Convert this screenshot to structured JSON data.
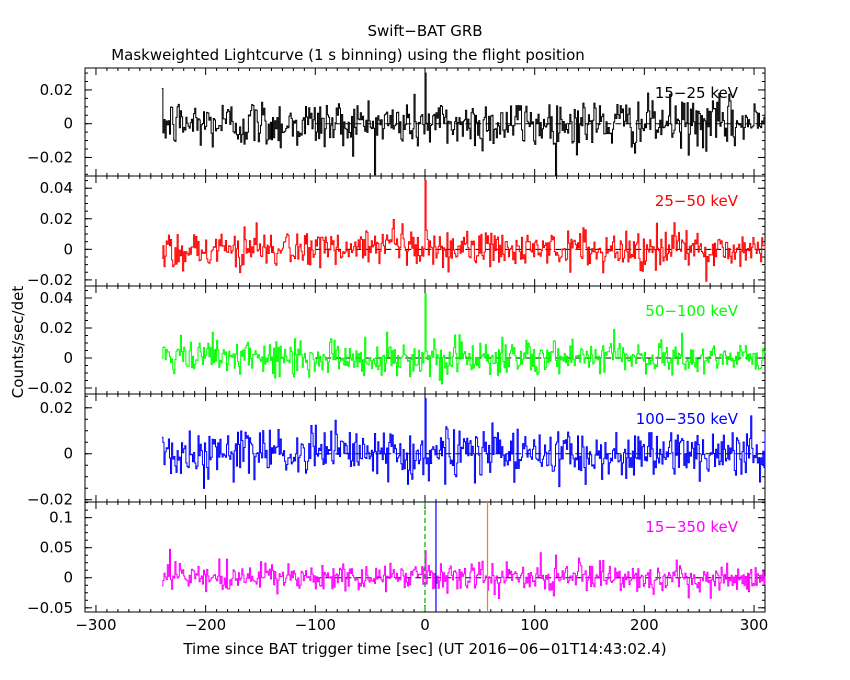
{
  "title": "Swift−BAT GRB",
  "subtitle": "Maskweighted Lightcurve (1 s binning) using the flight position",
  "xlabel": "Time since BAT trigger time [sec] (UT 2016−06−01T14:43:02.4)",
  "ylabel": "Counts/sec/det",
  "colors": {
    "band_15_25": "#000000",
    "band_25_50": "#ff0000",
    "band_50_100": "#00ff00",
    "band_100_350": "#0000ff",
    "band_15_350": "#ff00ff",
    "trigger_marker": "#00aa00",
    "t90_start_marker": "#0000ff",
    "t90_end_marker": "#ff8000"
  },
  "chart_data": {
    "type": "line",
    "xlim": [
      -310,
      310
    ],
    "xticks": [
      -300,
      -200,
      -100,
      0,
      100,
      200,
      300
    ],
    "xtick_labels": [
      "−300",
      "−200",
      "−100",
      "0",
      "100",
      "200",
      "300"
    ],
    "data_range": [
      -240,
      310
    ],
    "binning_s": 1,
    "zero_line": "dashed",
    "panels": [
      {
        "label": "15−25 keV",
        "color_key": "band_15_25",
        "ylim": [
          -0.031,
          0.033
        ],
        "yticks": [
          -0.02,
          0,
          0.02
        ],
        "ytick_labels": [
          "−0.02",
          "0",
          "0.02"
        ],
        "noise_sigma": 0.0075,
        "peak": {
          "t": 0,
          "value": 0.03
        }
      },
      {
        "label": "25−50 keV",
        "color_key": "band_25_50",
        "ylim": [
          -0.024,
          0.048
        ],
        "yticks": [
          -0.02,
          0,
          0.02,
          0.04
        ],
        "ytick_labels": [
          "−0.02",
          "0",
          "0.02",
          "0.04"
        ],
        "noise_sigma": 0.0065,
        "peak": {
          "t": 0,
          "value": 0.045
        }
      },
      {
        "label": "50−100 keV",
        "color_key": "band_50_100",
        "ylim": [
          -0.024,
          0.048
        ],
        "yticks": [
          -0.02,
          0,
          0.02,
          0.04
        ],
        "ytick_labels": [
          "−0.02",
          "0",
          "0.02",
          "0.04"
        ],
        "noise_sigma": 0.006,
        "peak": {
          "t": 0,
          "value": 0.043
        }
      },
      {
        "label": "100−350 keV",
        "color_key": "band_100_350",
        "ylim": [
          -0.021,
          0.026
        ],
        "yticks": [
          -0.02,
          0,
          0.02
        ],
        "ytick_labels": [
          "−0.02",
          "0",
          "0.02"
        ],
        "noise_sigma": 0.0055,
        "peak": {
          "t": 0,
          "value": 0.024
        }
      },
      {
        "label": "15−350 keV",
        "color_key": "band_15_350",
        "ylim": [
          -0.057,
          0.126
        ],
        "yticks": [
          -0.05,
          0,
          0.05,
          0.1
        ],
        "ytick_labels": [
          "−0.05",
          "0",
          "0.05",
          "0.1"
        ],
        "noise_sigma": 0.012,
        "peak": {
          "t": 0,
          "value": 0.045
        }
      }
    ],
    "markers": [
      {
        "t": 0,
        "color_key": "trigger_marker",
        "style": "dashed"
      },
      {
        "t": 10,
        "color_key": "t90_start_marker",
        "style": "solid"
      },
      {
        "t": 57,
        "color_key": "t90_end_marker",
        "style": "solid"
      }
    ]
  }
}
